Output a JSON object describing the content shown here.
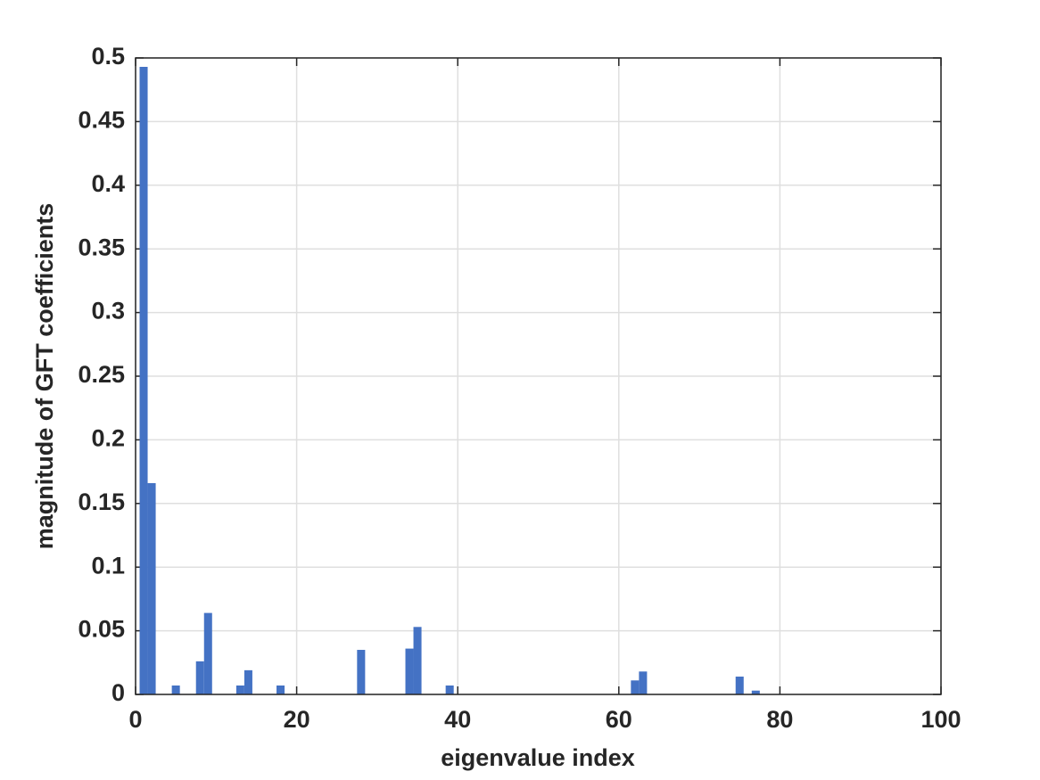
{
  "chart_data": {
    "type": "bar",
    "x_label": "eigenvalue index",
    "y_label": "magnitude of GFT coefficients",
    "x": [
      1,
      2,
      5,
      8,
      9,
      13,
      14,
      18,
      28,
      34,
      35,
      39,
      62,
      63,
      75,
      77
    ],
    "values": [
      0.493,
      0.166,
      0.007,
      0.026,
      0.064,
      0.007,
      0.019,
      0.007,
      0.035,
      0.036,
      0.053,
      0.007,
      0.011,
      0.018,
      0.014,
      0.003
    ],
    "color": "#4472c4",
    "xlim": [
      0,
      100
    ],
    "xticks": [
      0,
      20,
      40,
      60,
      80,
      100
    ],
    "ylim": [
      0,
      0.5
    ],
    "yticks": [
      0,
      0.05,
      0.1,
      0.15,
      0.2,
      0.25,
      0.3,
      0.35,
      0.4,
      0.45,
      0.5
    ],
    "grid": true
  }
}
